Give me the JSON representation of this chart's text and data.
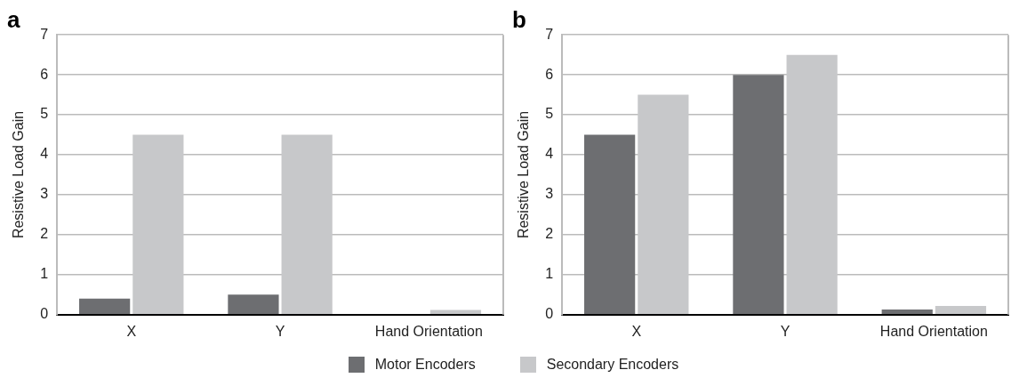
{
  "chart_data": [
    {
      "type": "bar",
      "title": "a",
      "ylabel": "Resistive Load Gain",
      "categories": [
        "X",
        "Y",
        "Hand Orientation"
      ],
      "series": [
        {
          "name": "Motor Encoders",
          "color": "#6d6e71",
          "values": [
            0.4,
            0.5,
            0
          ]
        },
        {
          "name": "Secondary Encoders",
          "color": "#c7c8ca",
          "values": [
            4.5,
            4.5,
            0.12
          ]
        }
      ],
      "ylim": [
        0,
        7
      ],
      "yticks": [
        0,
        1,
        2,
        3,
        4,
        5,
        6,
        7
      ],
      "grid": "y",
      "legend": "bottom"
    },
    {
      "type": "bar",
      "title": "b",
      "ylabel": "Resistive Load Gain",
      "categories": [
        "X",
        "Y",
        "Hand Orientation"
      ],
      "series": [
        {
          "color": "#6d6e71",
          "values": [
            4.5,
            6,
            0.13
          ]
        },
        {
          "color": "#c7c8ca",
          "values": [
            5.5,
            6.5,
            0.22
          ]
        }
      ],
      "ylim": [
        0,
        7
      ],
      "yticks": [
        0,
        1,
        2,
        3,
        4,
        5,
        6,
        7
      ],
      "grid": "y"
    }
  ]
}
